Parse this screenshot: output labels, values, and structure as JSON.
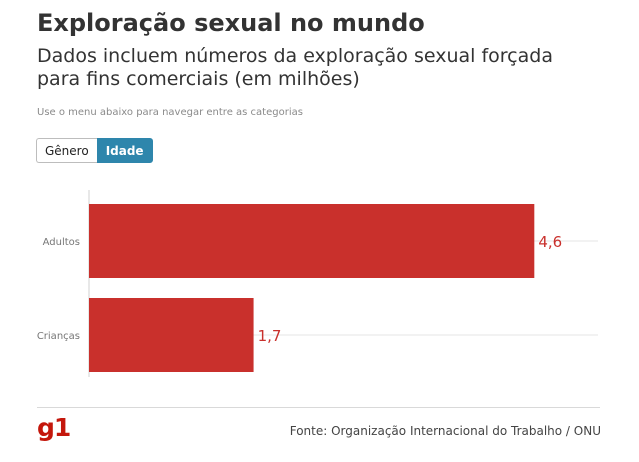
{
  "header": {
    "title": "Exploração sexual no mundo",
    "subtitle": "Dados incluem números da exploração sexual forçada para fins comerciais (em milhões)",
    "hint": "Use o menu abaixo para navegar entre as categorias"
  },
  "toggle": {
    "options": [
      "Gênero",
      "Idade"
    ],
    "selected": "Idade"
  },
  "chart_data": {
    "type": "bar",
    "orientation": "horizontal",
    "categories": [
      "Adultos",
      "Crianças"
    ],
    "values": [
      4.6,
      1.7
    ],
    "value_labels": [
      "4,6",
      "1,7"
    ],
    "xlim": [
      0,
      5.5
    ],
    "grid": "horizontal-lines",
    "bar_color": "#c9302c",
    "label_color": "#c9302c"
  },
  "footer": {
    "logo": "g1",
    "logo_color": "#c4170c",
    "source": "Fonte: Organização Internacional do Trabalho / ONU"
  }
}
